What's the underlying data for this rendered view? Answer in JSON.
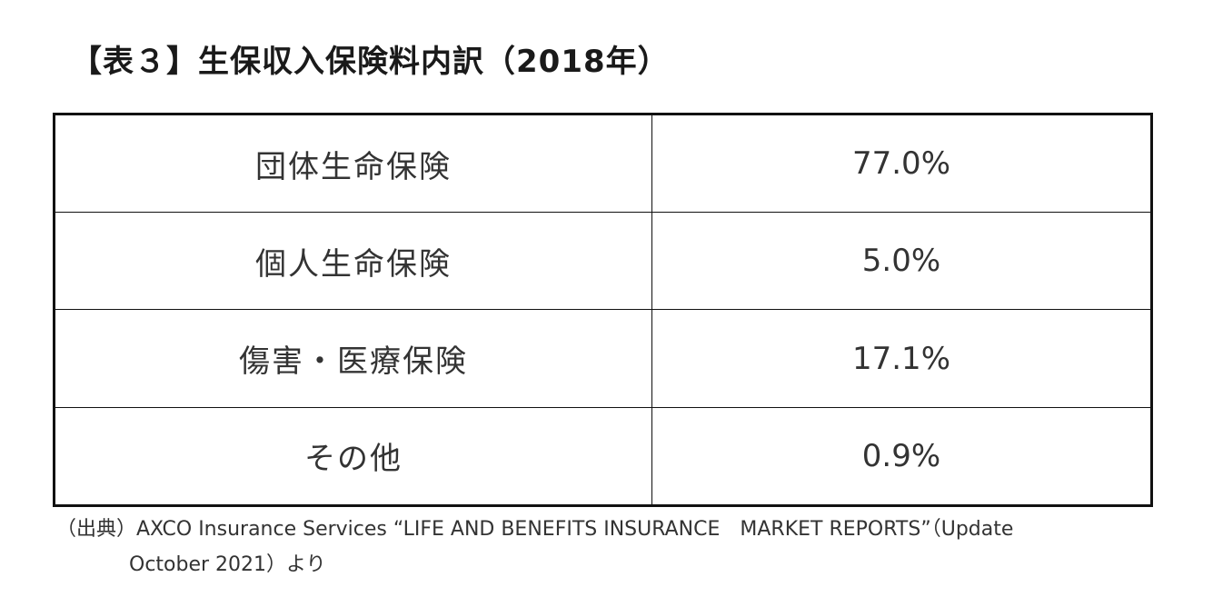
{
  "title": "【表３】生保収入保険料内訳（2018年）",
  "table": {
    "rows": [
      {
        "label": "団体生命保険",
        "value": "77.0%"
      },
      {
        "label": "個人生命保険",
        "value": "5.0%"
      },
      {
        "label": "傷害・医療保険",
        "value": "17.1%"
      },
      {
        "label": "その他",
        "value": "0.9%"
      }
    ]
  },
  "source": {
    "line1": "（出典）AXCO Insurance Services “LIFE AND BENEFITS INSURANCE　MARKET REPORTS”（Update",
    "line2": "October 2021）より"
  }
}
